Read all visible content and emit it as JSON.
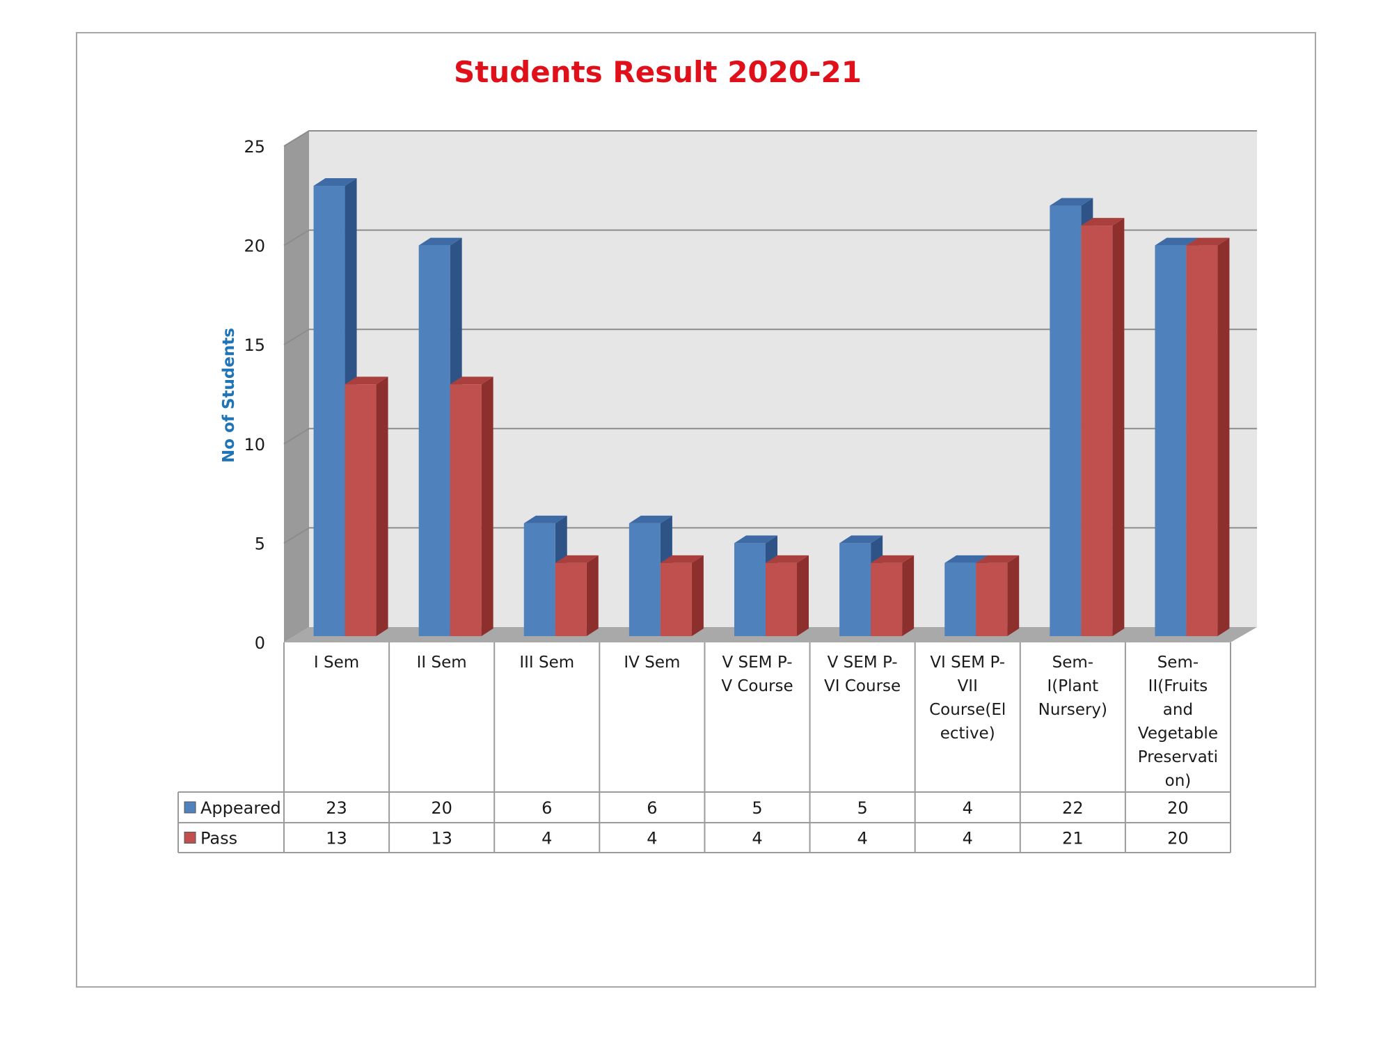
{
  "colors": {
    "title": "#e0101a",
    "ylabel": "#1f74b8",
    "appeared": "#4f81bd",
    "appeared_top": "#3e6aa6",
    "appeared_side": "#2e5487",
    "pass": "#c0504d",
    "pass_top": "#a9403d",
    "pass_side": "#8c2f2d",
    "plot_back": "#e6e6e6",
    "plot_wall": "#9a9a9a",
    "gridline": "#8c8c8c",
    "frame": "#a6a6a6"
  },
  "chart_data": {
    "type": "bar",
    "title": "Students Result 2020-21",
    "ylabel": "No of Students",
    "xlabel": "",
    "ylim": [
      0,
      25
    ],
    "yticks": [
      0,
      5,
      10,
      15,
      20,
      25
    ],
    "grid": true,
    "style": "3d-clustered-columns",
    "legend_placement": "data-table",
    "categories": [
      "I Sem",
      "II Sem",
      "III Sem",
      "IV Sem",
      "V SEM P-V Course",
      "V SEM P-VI Course",
      "VI SEM P-VII Course(Elective)",
      "Sem-I(Plant Nursery)",
      "Sem-II(Fruits and Vegetable Preservation)"
    ],
    "category_label_lines": [
      [
        "I Sem"
      ],
      [
        "II Sem"
      ],
      [
        "III Sem"
      ],
      [
        "IV Sem"
      ],
      [
        "V SEM P-",
        "V Course"
      ],
      [
        "V SEM P-",
        "VI Course"
      ],
      [
        "VI SEM P-",
        "VII",
        "Course(El",
        "ective)"
      ],
      [
        "Sem-",
        "I(Plant",
        "Nursery)"
      ],
      [
        "Sem-",
        "II(Fruits",
        "and",
        "Vegetable",
        "Preservati",
        "on)"
      ]
    ],
    "series": [
      {
        "name": "Appeared",
        "values": [
          23,
          20,
          6,
          6,
          5,
          5,
          4,
          22,
          20
        ]
      },
      {
        "name": "Pass",
        "values": [
          13,
          13,
          4,
          4,
          4,
          4,
          4,
          21,
          20
        ]
      }
    ]
  }
}
